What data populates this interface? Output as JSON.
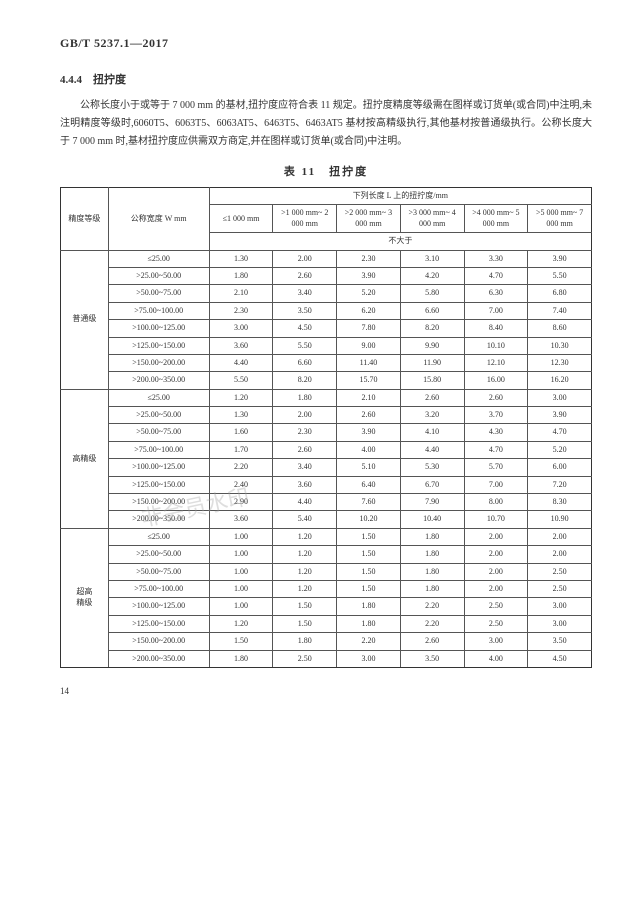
{
  "doc_code": "GB/T 5237.1—2017",
  "section_no": "4.4.4",
  "section_title": "扭拧度",
  "paragraph": "公称长度小于或等于 7 000 mm 的基材,扭拧度应符合表 11 规定。扭拧度精度等级需在图样或订货单(或合同)中注明,未注明精度等级时,6060T5、6063T5、6063AT5、6463T5、6463AT5 基材按高精级执行,其他基材按普通级执行。公称长度大于 7 000 mm 时,基材扭拧度应供需双方商定,并在图样或订货单(或合同)中注明。",
  "table_caption": "表 11　扭拧度",
  "header": {
    "col_grade": "精度等级",
    "col_width": "公称宽度 W\nmm",
    "span_title": "下列长度 L 上的扭拧度/mm",
    "ranges": [
      "≤1 000 mm",
      ">1 000 mm~\n2 000 mm",
      ">2 000 mm~\n3 000 mm",
      ">3 000 mm~\n4 000 mm",
      ">4 000 mm~\n5 000 mm",
      ">5 000 mm~\n7 000 mm"
    ],
    "nlt": "不大于"
  },
  "width_labels": [
    "≤25.00",
    ">25.00~50.00",
    ">50.00~75.00",
    ">75.00~100.00",
    ">100.00~125.00",
    ">125.00~150.00",
    ">150.00~200.00",
    ">200.00~350.00"
  ],
  "groups": [
    {
      "name": "普通级",
      "rows": [
        [
          "1.30",
          "2.00",
          "2.30",
          "3.10",
          "3.30",
          "3.90"
        ],
        [
          "1.80",
          "2.60",
          "3.90",
          "4.20",
          "4.70",
          "5.50"
        ],
        [
          "2.10",
          "3.40",
          "5.20",
          "5.80",
          "6.30",
          "6.80"
        ],
        [
          "2.30",
          "3.50",
          "6.20",
          "6.60",
          "7.00",
          "7.40"
        ],
        [
          "3.00",
          "4.50",
          "7.80",
          "8.20",
          "8.40",
          "8.60"
        ],
        [
          "3.60",
          "5.50",
          "9.00",
          "9.90",
          "10.10",
          "10.30"
        ],
        [
          "4.40",
          "6.60",
          "11.40",
          "11.90",
          "12.10",
          "12.30"
        ],
        [
          "5.50",
          "8.20",
          "15.70",
          "15.80",
          "16.00",
          "16.20"
        ]
      ]
    },
    {
      "name": "高精级",
      "rows": [
        [
          "1.20",
          "1.80",
          "2.10",
          "2.60",
          "2.60",
          "3.00"
        ],
        [
          "1.30",
          "2.00",
          "2.60",
          "3.20",
          "3.70",
          "3.90"
        ],
        [
          "1.60",
          "2.30",
          "3.90",
          "4.10",
          "4.30",
          "4.70"
        ],
        [
          "1.70",
          "2.60",
          "4.00",
          "4.40",
          "4.70",
          "5.20"
        ],
        [
          "2.20",
          "3.40",
          "5.10",
          "5.30",
          "5.70",
          "6.00"
        ],
        [
          "2.40",
          "3.60",
          "6.40",
          "6.70",
          "7.00",
          "7.20"
        ],
        [
          "2.90",
          "4.40",
          "7.60",
          "7.90",
          "8.00",
          "8.30"
        ],
        [
          "3.60",
          "5.40",
          "10.20",
          "10.40",
          "10.70",
          "10.90"
        ]
      ]
    },
    {
      "name": "超高\n精级",
      "rows": [
        [
          "1.00",
          "1.20",
          "1.50",
          "1.80",
          "2.00",
          "2.00"
        ],
        [
          "1.00",
          "1.20",
          "1.50",
          "1.80",
          "2.00",
          "2.00"
        ],
        [
          "1.00",
          "1.20",
          "1.50",
          "1.80",
          "2.00",
          "2.50"
        ],
        [
          "1.00",
          "1.20",
          "1.50",
          "1.80",
          "2.00",
          "2.50"
        ],
        [
          "1.00",
          "1.50",
          "1.80",
          "2.20",
          "2.50",
          "3.00"
        ],
        [
          "1.20",
          "1.50",
          "1.80",
          "2.20",
          "2.50",
          "3.00"
        ],
        [
          "1.50",
          "1.80",
          "2.20",
          "2.60",
          "3.00",
          "3.50"
        ],
        [
          "1.80",
          "2.50",
          "3.00",
          "3.50",
          "4.00",
          "4.50"
        ]
      ]
    }
  ],
  "page_number": "14",
  "watermark": "非会员水印"
}
